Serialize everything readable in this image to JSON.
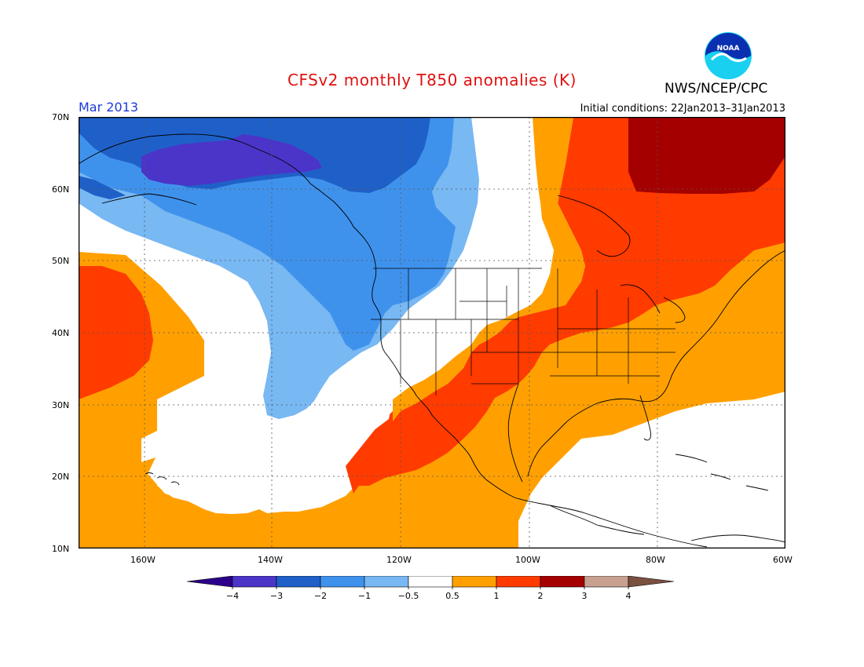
{
  "header": {
    "title": "CFSv2 monthly T850 anomalies (K)",
    "month": "Mar 2013",
    "initial_conditions": "Initial conditions: 22Jan2013–31Jan2013",
    "agency": "NWS/NCEP/CPC",
    "logo_text": "NOAA"
  },
  "map": {
    "lon_range": [
      -170,
      -60
    ],
    "lat_range": [
      10,
      70
    ],
    "lat_labels": [
      "70N",
      "60N",
      "50N",
      "40N",
      "30N",
      "20N",
      "10N"
    ],
    "lon_labels": [
      "160W",
      "140W",
      "120W",
      "100W",
      "80W",
      "60W"
    ],
    "colors": {
      "lt_-3": "#4b35c9",
      "-3_-2": "#1f60c8",
      "-2_-1": "#3f92ec",
      "-1_-0.5": "#78b8f3",
      "-0.5_0.5": "#ffffff",
      "0.5_1": "#ffa000",
      "1_2": "#ff3b00",
      "2_3": "#a50000",
      "3_4": "#c8a090",
      "gt_4": "#7a5040"
    }
  },
  "colorbar": {
    "labels": [
      "−4",
      "−3",
      "−2",
      "−1",
      "−0.5",
      "0.5",
      "1",
      "2",
      "3",
      "4"
    ],
    "colors": [
      "#2b008b",
      "#4b35c9",
      "#1f60c8",
      "#3f92ec",
      "#78b8f3",
      "#ffffff",
      "#ffa000",
      "#ff3b00",
      "#a50000",
      "#c8a090",
      "#7a5040"
    ]
  }
}
